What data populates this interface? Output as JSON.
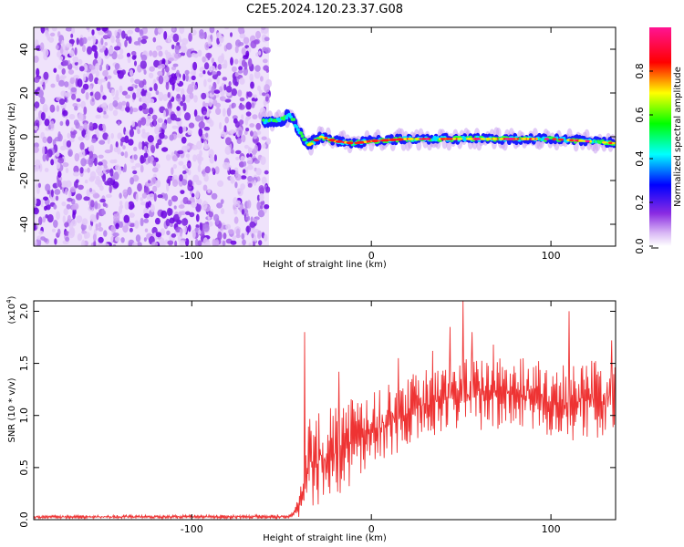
{
  "title": "C2E5.2024.120.23.37.G08",
  "chart_data": [
    {
      "type": "heatmap",
      "xlabel": "Height of straight line (km)",
      "ylabel": "Frequency (Hz)",
      "xlim": [
        -188,
        136
      ],
      "ylim": [
        -50,
        50
      ],
      "x_ticks": [
        -100,
        0,
        100
      ],
      "y_ticks": [
        -40,
        -20,
        0,
        20,
        40
      ],
      "colorbar": {
        "label": "Normalized spectral amplitude",
        "range": [
          0,
          1
        ],
        "ticks": [
          "0.0",
          "0.2",
          "0.4",
          "0.6",
          "0.8"
        ],
        "tick_values": [
          0.0,
          0.2,
          0.4,
          0.6,
          0.8
        ],
        "colormap": [
          "#ffffff",
          "#8a2be2",
          "#0000ff",
          "#00ffff",
          "#00ff00",
          "#ffff00",
          "#ff0000",
          "#ff1493"
        ]
      },
      "noise_region_x": [
        -188,
        -57
      ],
      "signal_track": [
        {
          "x": -60,
          "y": 7
        },
        {
          "x": -50,
          "y": 8
        },
        {
          "x": -45,
          "y": 10
        },
        {
          "x": -40,
          "y": 2
        },
        {
          "x": -35,
          "y": -4
        },
        {
          "x": -28,
          "y": 0
        },
        {
          "x": -20,
          "y": -2
        },
        {
          "x": -10,
          "y": -3
        },
        {
          "x": 0,
          "y": -2
        },
        {
          "x": 20,
          "y": -1
        },
        {
          "x": 50,
          "y": -1
        },
        {
          "x": 80,
          "y": -1
        },
        {
          "x": 100,
          "y": -1
        },
        {
          "x": 120,
          "y": -2
        },
        {
          "x": 136,
          "y": -3
        }
      ]
    },
    {
      "type": "line",
      "xlabel": "Height of straight line (km)",
      "ylabel": "SNR (10 * v/v)",
      "y_scale_label": "(x10",
      "y_scale_exponent": "4",
      "y_scale_close": ")",
      "xlim": [
        -188,
        136
      ],
      "ylim": [
        0,
        2.1
      ],
      "x_ticks": [
        -100,
        0,
        100
      ],
      "y_ticks": [
        "0.0",
        "0.5",
        "1.0",
        "1.5",
        "2.0"
      ],
      "y_tick_values": [
        0.0,
        0.5,
        1.0,
        1.5,
        2.0
      ],
      "color": "#ee3333",
      "envelope": [
        {
          "x": -188,
          "lo": 0.01,
          "hi": 0.04
        },
        {
          "x": -45,
          "lo": 0.01,
          "hi": 0.05
        },
        {
          "x": -40,
          "lo": 0.02,
          "hi": 0.25
        },
        {
          "x": -35,
          "lo": 0.05,
          "hi": 1.0
        },
        {
          "x": -25,
          "lo": 0.15,
          "hi": 1.05
        },
        {
          "x": -10,
          "lo": 0.35,
          "hi": 1.2
        },
        {
          "x": 10,
          "lo": 0.6,
          "hi": 1.3
        },
        {
          "x": 30,
          "lo": 0.75,
          "hi": 1.45
        },
        {
          "x": 50,
          "lo": 0.85,
          "hi": 1.55
        },
        {
          "x": 80,
          "lo": 0.85,
          "hi": 1.6
        },
        {
          "x": 110,
          "lo": 0.75,
          "hi": 1.5
        },
        {
          "x": 136,
          "lo": 0.8,
          "hi": 1.55
        }
      ],
      "peaks": [
        {
          "x": -37,
          "y": 1.8
        },
        {
          "x": -18,
          "y": 1.42
        },
        {
          "x": 15,
          "y": 1.55
        },
        {
          "x": 34,
          "y": 1.62
        },
        {
          "x": 44,
          "y": 1.85
        },
        {
          "x": 51,
          "y": 2.1
        },
        {
          "x": 56,
          "y": 1.8
        },
        {
          "x": 68,
          "y": 1.68
        },
        {
          "x": 110,
          "y": 2.0
        },
        {
          "x": 134,
          "y": 1.72
        }
      ]
    }
  ]
}
